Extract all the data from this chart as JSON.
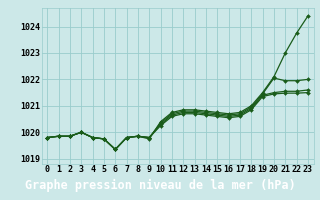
{
  "title": "Graphe pression niveau de la mer (hPa)",
  "hours": [
    0,
    1,
    2,
    3,
    4,
    5,
    6,
    7,
    8,
    9,
    10,
    11,
    12,
    13,
    14,
    15,
    16,
    17,
    18,
    19,
    20,
    21,
    22,
    23
  ],
  "ylim": [
    1018.8,
    1024.7
  ],
  "yticks": [
    1019,
    1020,
    1021,
    1022,
    1023,
    1024
  ],
  "line1": [
    1019.8,
    1019.85,
    1019.85,
    1020.0,
    1019.8,
    1019.75,
    1019.35,
    1019.8,
    1019.85,
    1019.75,
    1020.4,
    1020.75,
    1020.85,
    1020.85,
    1020.8,
    1020.75,
    1020.7,
    1020.75,
    1021.0,
    1021.5,
    1022.1,
    1023.0,
    1023.75,
    1024.4
  ],
  "line2": [
    1019.8,
    1019.85,
    1019.85,
    1020.0,
    1019.8,
    1019.75,
    1019.35,
    1019.8,
    1019.85,
    1019.8,
    1020.35,
    1020.7,
    1020.8,
    1020.8,
    1020.75,
    1020.7,
    1020.65,
    1020.7,
    1020.95,
    1021.45,
    1022.05,
    1021.95,
    1021.95,
    1022.0
  ],
  "line3": [
    1019.8,
    1019.85,
    1019.85,
    1020.0,
    1019.8,
    1019.75,
    1019.35,
    1019.8,
    1019.85,
    1019.8,
    1020.3,
    1020.65,
    1020.75,
    1020.75,
    1020.7,
    1020.65,
    1020.6,
    1020.65,
    1020.9,
    1021.4,
    1021.5,
    1021.55,
    1021.55,
    1021.6
  ],
  "line4": [
    1019.8,
    1019.85,
    1019.85,
    1020.0,
    1019.8,
    1019.75,
    1019.35,
    1019.8,
    1019.85,
    1019.8,
    1020.25,
    1020.6,
    1020.7,
    1020.7,
    1020.65,
    1020.6,
    1020.55,
    1020.6,
    1020.85,
    1021.35,
    1021.45,
    1021.48,
    1021.48,
    1021.5
  ],
  "bg_color": "#cce8e8",
  "grid_color": "#99cccc",
  "line_color": "#1a5c1a",
  "marker": "D",
  "marker_size": 2.0,
  "line_width": 0.9,
  "title_fontsize": 8.5,
  "tick_fontsize": 6.0,
  "title_bg": "#2e6b2e",
  "title_color": "#ffffff"
}
